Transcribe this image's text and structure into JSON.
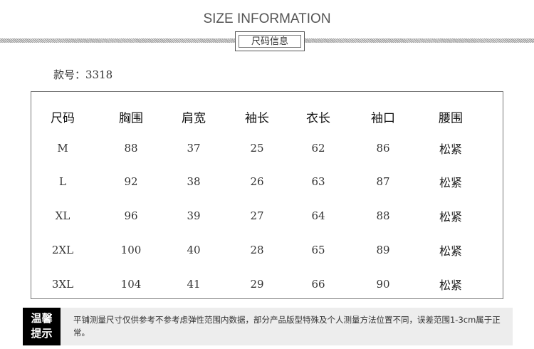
{
  "header": {
    "title": "SIZE INFORMATION",
    "subtitle": "尺码信息"
  },
  "style_number": "款号：3318",
  "table": {
    "columns": [
      "尺码",
      "胸围",
      "肩宽",
      "袖长",
      "衣长",
      "袖口",
      "腰围"
    ],
    "rows": [
      [
        "M",
        "88",
        "37",
        "25",
        "62",
        "86",
        "松紧"
      ],
      [
        "L",
        "92",
        "38",
        "26",
        "63",
        "87",
        "松紧"
      ],
      [
        "XL",
        "96",
        "39",
        "27",
        "64",
        "88",
        "松紧"
      ],
      [
        "2XL",
        "100",
        "40",
        "28",
        "65",
        "89",
        "松紧"
      ],
      [
        "3XL",
        "104",
        "41",
        "29",
        "66",
        "90",
        "松紧"
      ]
    ]
  },
  "notice": {
    "label_line1": "温馨",
    "label_line2": "提示",
    "text": "平铺测量尺寸仅供参考不参考虑弹性范围内数据，部分产品版型特殊及个人测量方法位置不同，误差范围1-3cm属于正常。"
  }
}
